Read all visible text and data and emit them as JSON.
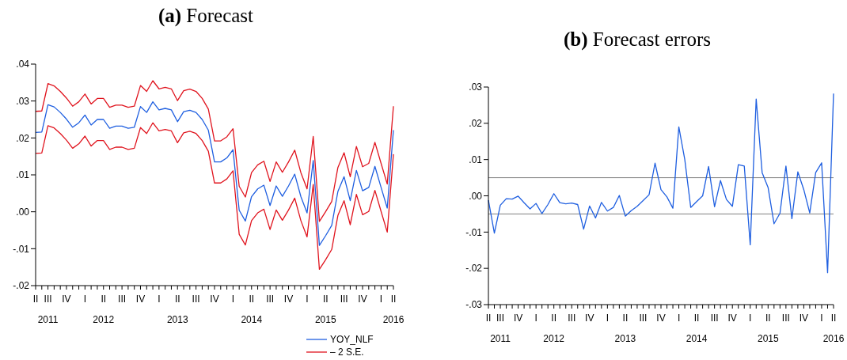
{
  "chart_data": [
    {
      "type": "line",
      "title": "(a) Forecast",
      "categories": [
        "II",
        null,
        "III\n2011",
        null,
        null,
        "IV",
        null,
        null,
        "I",
        null,
        null,
        "II\n2012",
        null,
        null,
        "III",
        null,
        null,
        "IV",
        null,
        null,
        "I",
        null,
        null,
        "II\n2013",
        null,
        null,
        "III",
        null,
        null,
        "IV",
        null,
        null,
        "I",
        null,
        null,
        "II\n2014",
        null,
        null,
        "III",
        null,
        null,
        "IV",
        null,
        null,
        "I",
        null,
        null,
        "II\n2015",
        null,
        null,
        "III",
        null,
        null,
        "IV",
        null,
        null,
        "I",
        null,
        "II\n2016"
      ],
      "series": [
        {
          "name": "YOY_NLF",
          "color": "#1f5fe0",
          "values": [
            0.0215,
            0.0216,
            0.029,
            0.0284,
            0.0269,
            0.0251,
            0.0229,
            0.0241,
            0.0262,
            0.0235,
            0.025,
            0.025,
            0.0226,
            0.0232,
            0.0232,
            0.0226,
            0.0229,
            0.0285,
            0.0269,
            0.0298,
            0.0276,
            0.028,
            0.0276,
            0.0244,
            0.0271,
            0.0275,
            0.0269,
            0.025,
            0.0221,
            0.0135,
            0.0135,
            0.0146,
            0.0168,
            0.0004,
            -0.0025,
            0.0041,
            0.0062,
            0.0072,
            0.0017,
            0.007,
            0.0042,
            0.007,
            0.0102,
            0.0041,
            -0.0003,
            0.0139,
            -0.0091,
            -0.0065,
            -0.0037,
            0.0055,
            0.0095,
            0.003,
            0.0112,
            0.0057,
            0.0066,
            0.0123,
            0.0066,
            0.001,
            0.0221
          ]
        },
        {
          "color": "#e0141e",
          "values": [
            0.0272,
            0.0273,
            0.0347,
            0.0341,
            0.0326,
            0.0308,
            0.0286,
            0.0298,
            0.0319,
            0.0292,
            0.0307,
            0.0307,
            0.0283,
            0.0289,
            0.0289,
            0.0283,
            0.0286,
            0.0342,
            0.0326,
            0.0355,
            0.0333,
            0.0337,
            0.0333,
            0.0301,
            0.0328,
            0.0332,
            0.0326,
            0.0307,
            0.0278,
            0.0192,
            0.0192,
            0.0203,
            0.0225,
            0.0069,
            0.004,
            0.0106,
            0.0127,
            0.0137,
            0.0082,
            0.0135,
            0.0107,
            0.0135,
            0.0167,
            0.0106,
            0.0062,
            0.0204,
            -0.0026,
            0,
            0.0028,
            0.012,
            0.016,
            0.0095,
            0.0177,
            0.0122,
            0.0131,
            0.0188,
            0.0131,
            0.0075,
            0.0286
          ]
        },
        {
          "name": "– 2 S.E.",
          "color": "#e0141e",
          "values": [
            0.0158,
            0.0159,
            0.0233,
            0.0227,
            0.0212,
            0.0194,
            0.0172,
            0.0184,
            0.0205,
            0.0178,
            0.0193,
            0.0193,
            0.0169,
            0.0175,
            0.0175,
            0.0169,
            0.0172,
            0.0228,
            0.0212,
            0.0241,
            0.0219,
            0.0223,
            0.0219,
            0.0187,
            0.0214,
            0.0218,
            0.0212,
            0.0193,
            0.0164,
            0.0078,
            0.0078,
            0.0089,
            0.0111,
            -0.0061,
            -0.009,
            -0.0024,
            -0.0003,
            0.0007,
            -0.0048,
            0.0005,
            -0.0023,
            0.0005,
            0.0037,
            -0.0024,
            -0.0068,
            0.0074,
            -0.0156,
            -0.013,
            -0.0102,
            -0.001,
            0.003,
            -0.0035,
            0.0047,
            -0.0008,
            0.0001,
            0.0058,
            0.0001,
            -0.0055,
            0.0156
          ]
        }
      ],
      "ylim": [
        -0.02,
        0.04
      ],
      "yticks": [
        {
          "value": -0.02,
          "label": "-.02"
        },
        {
          "value": -0.01,
          "label": "-.01"
        },
        {
          "value": 0,
          "label": ".00"
        },
        {
          "value": 0.01,
          "label": ".01"
        },
        {
          "value": 0.02,
          "label": ".02"
        },
        {
          "value": 0.03,
          "label": ".03"
        },
        {
          "value": 0.04,
          "label": ".04"
        }
      ],
      "legend": "bottom right"
    },
    {
      "type": "line",
      "title": "(b) Forecast errors",
      "categories": [
        "II",
        null,
        "III\n2011",
        null,
        null,
        "IV",
        null,
        null,
        "I",
        null,
        null,
        "II\n2012",
        null,
        null,
        "III",
        null,
        null,
        "IV",
        null,
        null,
        "I",
        null,
        null,
        "II\n2013",
        null,
        null,
        "III",
        null,
        null,
        "IV",
        null,
        null,
        "I",
        null,
        null,
        "II\n2014",
        null,
        null,
        "III",
        null,
        null,
        "IV",
        null,
        null,
        "I",
        null,
        null,
        "II\n2015",
        null,
        null,
        "III",
        null,
        null,
        "IV",
        null,
        null,
        "I",
        null,
        "II\n2016"
      ],
      "series": [
        {
          "color": "#1f5fe0",
          "values": [
            -0.0012,
            -0.0103,
            -0.0026,
            -0.0008,
            -0.0009,
            -0.0001,
            -0.0019,
            -0.0036,
            -0.0021,
            -0.0049,
            -0.0024,
            0.0006,
            -0.0019,
            -0.0022,
            -0.002,
            -0.0024,
            -0.0092,
            -0.0028,
            -0.0061,
            -0.0018,
            -0.0042,
            -0.0032,
            0.0001,
            -0.0056,
            -0.0041,
            -0.0029,
            -0.0013,
            0.0003,
            0.009,
            0.0017,
            -0.0003,
            -0.0034,
            0.019,
            0.01,
            -0.0032,
            -0.0016,
            0,
            0.0081,
            -0.003,
            0.0042,
            -0.001,
            -0.0029,
            0.0086,
            0.0082,
            -0.0135,
            0.0267,
            0.0064,
            0.0023,
            -0.0077,
            -0.0048,
            0.0082,
            -0.0063,
            0.0066,
            0.0017,
            -0.0047,
            0.0064,
            0.0091,
            -0.0212,
            0.0282
          ]
        }
      ],
      "ylim": [
        -0.03,
        0.03
      ],
      "yticks": [
        {
          "value": -0.03,
          "label": "-.03"
        },
        {
          "value": -0.02,
          "label": "-.02"
        },
        {
          "value": -0.01,
          "label": "-.01"
        },
        {
          "value": 0,
          "label": ".00"
        },
        {
          "value": 0.01,
          "label": ".01"
        },
        {
          "value": 0.02,
          "label": ".02"
        },
        {
          "value": 0.03,
          "label": ".03"
        }
      ],
      "ref_lines": [
        {
          "axis": "y",
          "value": 0.005,
          "color": "#808080"
        },
        {
          "axis": "y",
          "value": -0.005,
          "color": "#808080"
        }
      ],
      "legend": false
    }
  ]
}
